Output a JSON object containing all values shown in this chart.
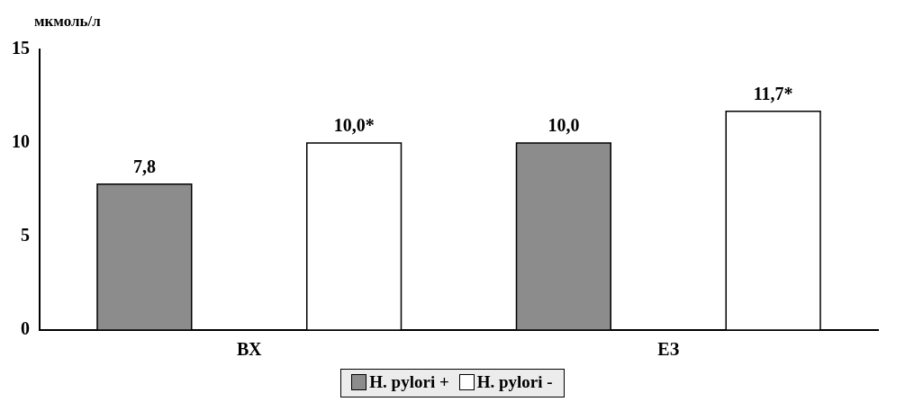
{
  "chart_data": {
    "type": "bar",
    "ylabel": "мкмоль/л",
    "categories": [
      "ВХ",
      "ЕЗ"
    ],
    "series": [
      {
        "name": "H. pylori +",
        "color": "#8c8c8c",
        "values": [
          7.8,
          10.0
        ],
        "value_labels": [
          "7,8",
          "10,0"
        ]
      },
      {
        "name": "H. pylori -",
        "color": "#ffffff",
        "values": [
          10.0,
          11.7
        ],
        "value_labels": [
          "10,0*",
          "11,7*"
        ]
      }
    ],
    "ylim": [
      0,
      15
    ],
    "yticks": [
      0,
      5,
      10,
      15
    ],
    "grid": false,
    "legend": "bottom"
  }
}
